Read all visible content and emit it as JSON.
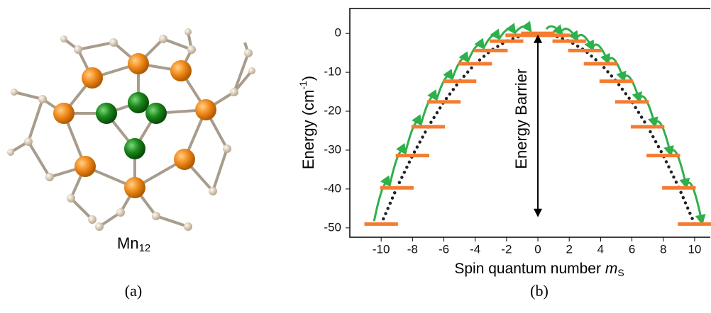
{
  "panel_a": {
    "caption": [
      "Mn",
      "12"
    ],
    "label": "(a)"
  },
  "panel_b_label": "(b)",
  "chart_data": {
    "type": "levels",
    "y_label": [
      "Energy (cm",
      "-1",
      ")"
    ],
    "x_label": [
      "Spin quantum number ",
      "m",
      "S"
    ],
    "annotation": "Energy Barrier",
    "x": [
      -10,
      -9,
      -8,
      -7,
      -6,
      -5,
      -4,
      -3,
      -2,
      -1,
      0,
      1,
      2,
      3,
      4,
      5,
      6,
      7,
      8,
      9,
      10
    ],
    "values": [
      -49,
      -39.7,
      -31.4,
      -24,
      -17.6,
      -12.3,
      -7.8,
      -4.4,
      -2,
      -0.5,
      0,
      -0.5,
      -2,
      -4.4,
      -7.8,
      -12.3,
      -17.6,
      -24,
      -31.4,
      -39.7,
      -49
    ],
    "color": "#f47c30",
    "curve_color": "#222222",
    "arrow_color": "#2eb04a",
    "xlim": [
      -12,
      11
    ],
    "ylim": [
      -52.4,
      6.4
    ],
    "xticks": [
      -10,
      -8,
      -6,
      -4,
      -2,
      0,
      2,
      4,
      6,
      8,
      10
    ],
    "yticks": [
      0,
      -10,
      -20,
      -30,
      -40,
      -50
    ],
    "grid": false
  }
}
